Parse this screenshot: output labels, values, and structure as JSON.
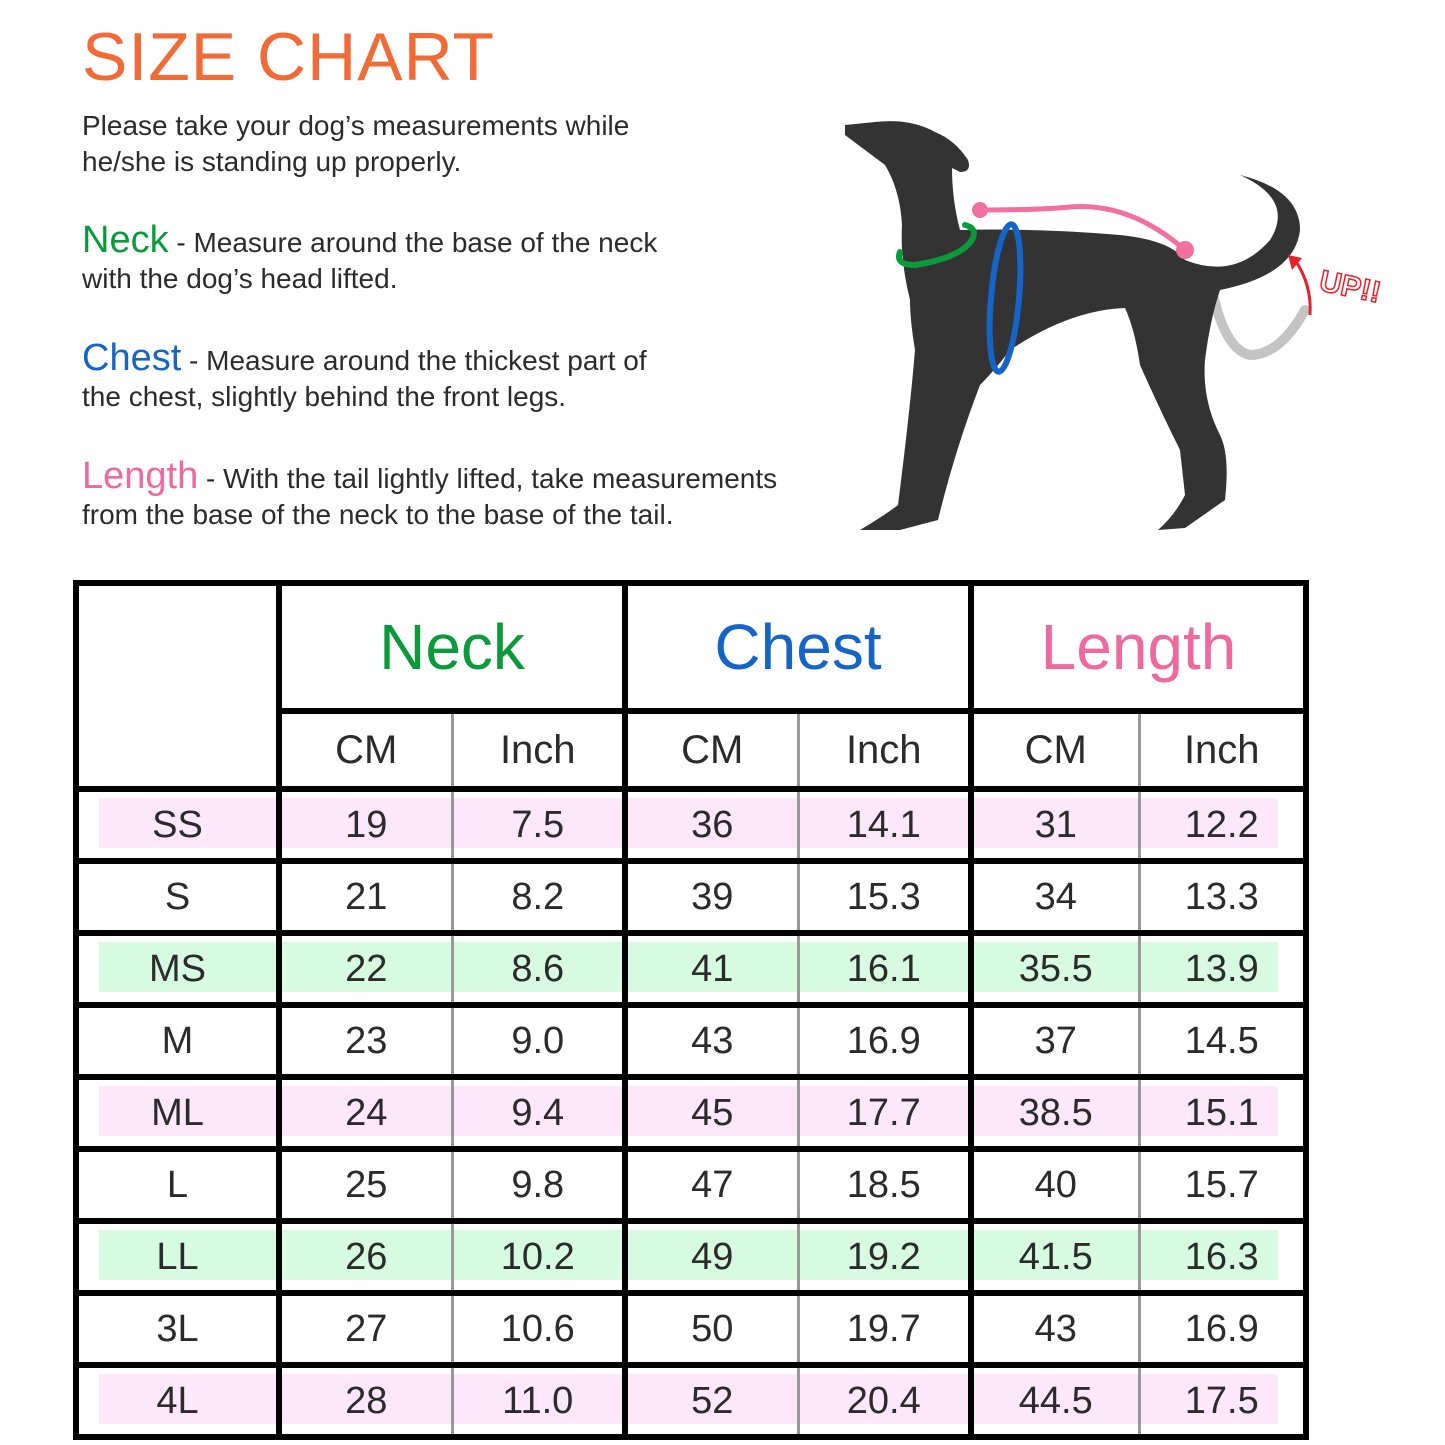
{
  "title": "SIZE CHART",
  "intro": [
    "Please take your dog’s measurements while",
    "he/she is standing up properly."
  ],
  "instructions": [
    {
      "keyword": "Neck",
      "color": "#0a9a3a",
      "line1": " - Measure around the base of the neck",
      "line2": "with the dog’s head lifted."
    },
    {
      "keyword": "Chest",
      "color": "#1565c8",
      "line1": " - Measure around the thickest part of",
      "line2": "the chest, slightly behind the front legs."
    },
    {
      "keyword": "Length",
      "color": "#f0699e",
      "line1": " - With the tail lightly lifted, take measurements",
      "line2": "from the base of the neck to the base of the tail."
    }
  ],
  "illustration": {
    "up_label": "UP!!",
    "colors": {
      "neck": "#0a9a3a",
      "chest": "#1565c8",
      "length": "#f26f9f",
      "arrow": "#e8202a",
      "dog": "#333333"
    }
  },
  "table": {
    "groups": [
      {
        "label": "Neck",
        "color": "#0a9a3a"
      },
      {
        "label": "Chest",
        "color": "#1565c8"
      },
      {
        "label": "Length",
        "color": "#f0699e"
      }
    ],
    "units": [
      "CM",
      "Inch",
      "CM",
      "Inch",
      "CM",
      "Inch"
    ],
    "row_colors": {
      "pink": "#fde7fb",
      "green": "#d6fbe1"
    },
    "rows": [
      {
        "size": "SS",
        "highlight": "pink",
        "values": [
          "19",
          "7.5",
          "36",
          "14.1",
          "31",
          "12.2"
        ]
      },
      {
        "size": "S",
        "highlight": "none",
        "values": [
          "21",
          "8.2",
          "39",
          "15.3",
          "34",
          "13.3"
        ]
      },
      {
        "size": "MS",
        "highlight": "green",
        "values": [
          "22",
          "8.6",
          "41",
          "16.1",
          "35.5",
          "13.9"
        ]
      },
      {
        "size": "M",
        "highlight": "none",
        "values": [
          "23",
          "9.0",
          "43",
          "16.9",
          "37",
          "14.5"
        ]
      },
      {
        "size": "ML",
        "highlight": "pink",
        "values": [
          "24",
          "9.4",
          "45",
          "17.7",
          "38.5",
          "15.1"
        ]
      },
      {
        "size": "L",
        "highlight": "none",
        "values": [
          "25",
          "9.8",
          "47",
          "18.5",
          "40",
          "15.7"
        ]
      },
      {
        "size": "LL",
        "highlight": "green",
        "values": [
          "26",
          "10.2",
          "49",
          "19.2",
          "41.5",
          "16.3"
        ]
      },
      {
        "size": "3L",
        "highlight": "none",
        "values": [
          "27",
          "10.6",
          "50",
          "19.7",
          "43",
          "16.9"
        ]
      },
      {
        "size": "4L",
        "highlight": "pink",
        "values": [
          "28",
          "11.0",
          "52",
          "20.4",
          "44.5",
          "17.5"
        ]
      }
    ]
  }
}
